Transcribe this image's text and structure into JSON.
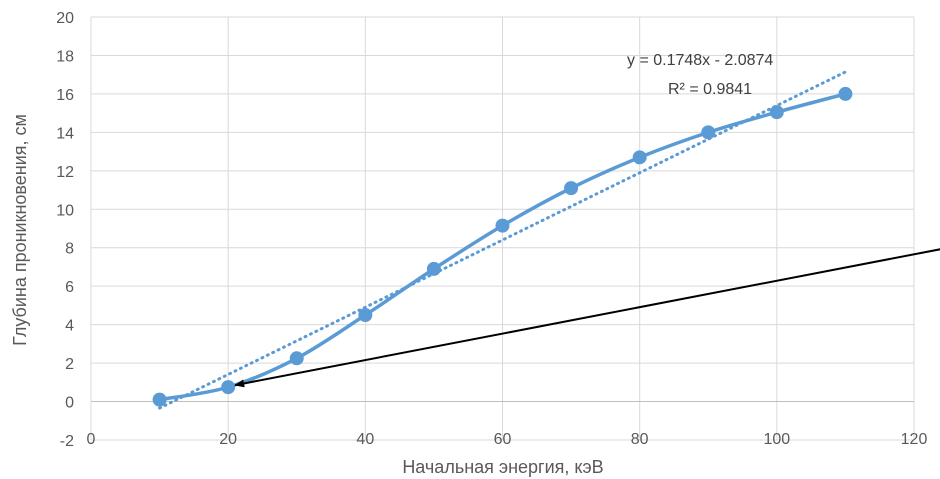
{
  "chart_data": {
    "type": "scatter",
    "title": "",
    "xlabel": "Начальная энергия, кэВ",
    "ylabel": "Глубина проникновения, см",
    "xlim": [
      0,
      120
    ],
    "ylim": [
      -2,
      20
    ],
    "x_ticks": [
      0,
      20,
      40,
      60,
      80,
      100,
      120
    ],
    "y_ticks": [
      -2,
      0,
      2,
      4,
      6,
      8,
      10,
      12,
      14,
      16,
      18,
      20
    ],
    "grid": true,
    "series": [
      {
        "x": [
          10,
          20,
          30,
          40,
          50,
          60,
          70,
          80,
          90,
          100,
          110
        ],
        "y": [
          0.1,
          0.75,
          2.25,
          4.5,
          6.9,
          9.15,
          11.1,
          12.7,
          14.0,
          15.05,
          16.0
        ],
        "color": "#5B9BD5",
        "style": "smooth line with circle markers"
      }
    ],
    "trendline": {
      "slope": 0.1748,
      "intercept": -2.0874,
      "x_range": [
        10,
        110
      ],
      "color": "#5B9BD5",
      "style": "dotted",
      "equation_label": "y = 0.1748x - 2.0874",
      "r2_label": "R² = 0.9841"
    },
    "annotation_arrow": {
      "from": [
        173,
        11.3
      ],
      "to": [
        20,
        0.75
      ],
      "color": "#000000"
    }
  }
}
